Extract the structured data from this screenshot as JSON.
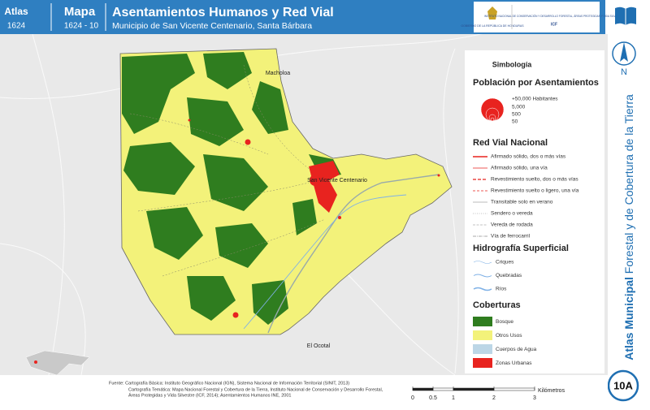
{
  "header": {
    "atlas_label": "Atlas",
    "atlas_number": "1624",
    "map_label": "Mapa",
    "map_number": "1624 - 10",
    "title": "Asentamientos Humanos y Red Vial",
    "subtitle": "Municipio de San Vicente Centenario, Santa Bárbara",
    "logos": [
      "GOBIERNO DE LA REPÚBLICA DE HONDURAS",
      "INSTITUTO NACIONAL DE CONSERVACIÓN Y DESARROLLO FORESTAL, ÁREAS PROTEGIDAS Y VIDA SILVESTRE",
      "ICF"
    ]
  },
  "side": {
    "north": "N",
    "atlas_title": "Atlas Municipal",
    "atlas_subtitle": "Forestal y de Cobertura de la Tierra",
    "page": "10A"
  },
  "map": {
    "places": [
      "Macholoa",
      "San Vicente Centenario",
      "El Ocotal"
    ]
  },
  "legend": {
    "title": "Simbología",
    "population": {
      "title": "Población por Asentamientos",
      "labels": [
        "+50,000 Habitantes",
        "5,000",
        "500",
        "50"
      ]
    },
    "roads": {
      "title": "Red Vial Nacional",
      "items": [
        "Afirmado sólido, dos o más vías",
        "Afirmado sólido, una vía",
        "Revestimiento suelto, dos o más vías",
        "Revestimiento suelto o ligero, una vía",
        "Transitable solo en verano",
        "Sendero o vereda",
        "Vereda de rodada",
        "Vía de ferrocarril"
      ]
    },
    "hydro": {
      "title": "Hidrografía Superficial",
      "items": [
        "Criques",
        "Quebradas",
        "Ríos"
      ]
    },
    "cover": {
      "title": "Coberturas",
      "items": [
        {
          "label": "Bosque",
          "color": "#2f7d1f"
        },
        {
          "label": "Otros Usos",
          "color": "#f3f27a"
        },
        {
          "label": "Cuerpos de Agua",
          "color": "#bcd6e6"
        },
        {
          "label": "Zonas Urbanas",
          "color": "#e8231f"
        }
      ]
    }
  },
  "footer": {
    "source": [
      "Fuente: Cartografía Básica: Instituto Geográfico Nacional (IGN), Sistema Nacional de Información Territorial (SINIT, 2013)",
      "Cartografía Temática: Mapa Nacional Forestal y Cobertura de la Tierra, Instituto Nacional de Conservación y Desarrollo Forestal,",
      "Áreas Protegidas y Vida Silvestre (ICF, 2014); Asentamientos Humanos INE, 2001"
    ],
    "scale": {
      "ticks": [
        0,
        0.5,
        1,
        2,
        3
      ],
      "unit": "Kilómetros"
    }
  }
}
